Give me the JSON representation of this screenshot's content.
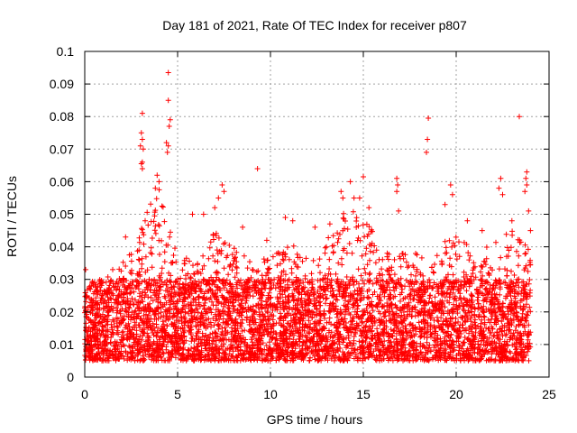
{
  "chart_data": {
    "type": "scatter",
    "title": "Day 181 of 2021, Rate Of TEC Index for receiver p807",
    "xlabel": "GPS time / hours",
    "ylabel": "ROTI / TECUs",
    "xlim": [
      0,
      25
    ],
    "ylim": [
      0,
      0.1
    ],
    "x_ticks": [
      0,
      5,
      10,
      15,
      20,
      25
    ],
    "x_tick_labels": [
      "0",
      "5",
      "10",
      "15",
      "20",
      "25"
    ],
    "y_ticks": [
      0,
      0.01,
      0.02,
      0.03,
      0.04,
      0.05,
      0.06,
      0.07,
      0.08,
      0.09,
      0.1
    ],
    "y_tick_labels": [
      "0",
      "0.01",
      "0.02",
      "0.03",
      "0.04",
      "0.05",
      "0.06",
      "0.07",
      "0.08",
      "0.09",
      "0.1"
    ],
    "grid": true,
    "marker": "+",
    "color": "#ff0000",
    "data_range_hours": [
      0,
      24
    ],
    "bulk_band": [
      0.005,
      0.03
    ],
    "envelope": [
      [
        0,
        0.028
      ],
      [
        1,
        0.03
      ],
      [
        2,
        0.036
      ],
      [
        2.8,
        0.04
      ],
      [
        3.2,
        0.05
      ],
      [
        4,
        0.06
      ],
      [
        5,
        0.04
      ],
      [
        6,
        0.034
      ],
      [
        7,
        0.045
      ],
      [
        8,
        0.04
      ],
      [
        9,
        0.036
      ],
      [
        10,
        0.038
      ],
      [
        11,
        0.043
      ],
      [
        12,
        0.036
      ],
      [
        13,
        0.042
      ],
      [
        14,
        0.052
      ],
      [
        15,
        0.05
      ],
      [
        16,
        0.04
      ],
      [
        17,
        0.038
      ],
      [
        18,
        0.038
      ],
      [
        19,
        0.04
      ],
      [
        20,
        0.045
      ],
      [
        21,
        0.038
      ],
      [
        22,
        0.042
      ],
      [
        23,
        0.045
      ],
      [
        24,
        0.04
      ]
    ],
    "notable_points": [
      {
        "x": 4.5,
        "y": 0.0935
      },
      {
        "x": 4.5,
        "y": 0.085
      },
      {
        "x": 4.6,
        "y": 0.079
      },
      {
        "x": 4.55,
        "y": 0.077
      },
      {
        "x": 4.5,
        "y": 0.071
      },
      {
        "x": 4.45,
        "y": 0.069
      },
      {
        "x": 4.4,
        "y": 0.072
      },
      {
        "x": 3.1,
        "y": 0.081
      },
      {
        "x": 3.05,
        "y": 0.075
      },
      {
        "x": 3.1,
        "y": 0.073
      },
      {
        "x": 3.0,
        "y": 0.071
      },
      {
        "x": 3.15,
        "y": 0.07
      },
      {
        "x": 3.1,
        "y": 0.066
      },
      {
        "x": 3.05,
        "y": 0.0655
      },
      {
        "x": 3.1,
        "y": 0.064
      },
      {
        "x": 9.3,
        "y": 0.064
      },
      {
        "x": 18.5,
        "y": 0.0795
      },
      {
        "x": 18.45,
        "y": 0.073
      },
      {
        "x": 18.4,
        "y": 0.069
      },
      {
        "x": 23.4,
        "y": 0.08
      },
      {
        "x": 23.8,
        "y": 0.063
      },
      {
        "x": 23.75,
        "y": 0.061
      },
      {
        "x": 23.8,
        "y": 0.059
      },
      {
        "x": 23.7,
        "y": 0.057
      },
      {
        "x": 16.8,
        "y": 0.061
      },
      {
        "x": 16.85,
        "y": 0.059
      },
      {
        "x": 16.8,
        "y": 0.057
      },
      {
        "x": 16.9,
        "y": 0.051
      },
      {
        "x": 15.0,
        "y": 0.0615
      },
      {
        "x": 14.3,
        "y": 0.06
      },
      {
        "x": 14.8,
        "y": 0.055
      },
      {
        "x": 13.8,
        "y": 0.057
      },
      {
        "x": 13.9,
        "y": 0.055
      },
      {
        "x": 22.4,
        "y": 0.061
      },
      {
        "x": 22.3,
        "y": 0.058
      },
      {
        "x": 22.5,
        "y": 0.056
      },
      {
        "x": 19.7,
        "y": 0.059
      },
      {
        "x": 19.8,
        "y": 0.056
      },
      {
        "x": 19.4,
        "y": 0.053
      },
      {
        "x": 7.4,
        "y": 0.059
      },
      {
        "x": 7.5,
        "y": 0.057
      },
      {
        "x": 7.2,
        "y": 0.055
      },
      {
        "x": 7.0,
        "y": 0.052
      },
      {
        "x": 6.4,
        "y": 0.05
      },
      {
        "x": 5.8,
        "y": 0.05
      },
      {
        "x": 4.0,
        "y": 0.06
      },
      {
        "x": 3.8,
        "y": 0.058
      },
      {
        "x": 3.9,
        "y": 0.062
      },
      {
        "x": 10.8,
        "y": 0.049
      },
      {
        "x": 11.2,
        "y": 0.048
      },
      {
        "x": 12.4,
        "y": 0.046
      },
      {
        "x": 13.2,
        "y": 0.047
      },
      {
        "x": 14.5,
        "y": 0.055
      },
      {
        "x": 15.3,
        "y": 0.052
      },
      {
        "x": 20.6,
        "y": 0.048
      },
      {
        "x": 21.4,
        "y": 0.045
      },
      {
        "x": 23.0,
        "y": 0.048
      },
      {
        "x": 23.9,
        "y": 0.051
      },
      {
        "x": 24.0,
        "y": 0.045
      },
      {
        "x": 0.05,
        "y": 0.033
      },
      {
        "x": 0.4,
        "y": 0.029
      },
      {
        "x": 2.2,
        "y": 0.043
      },
      {
        "x": 8.5,
        "y": 0.046
      },
      {
        "x": 9.8,
        "y": 0.042
      }
    ]
  }
}
